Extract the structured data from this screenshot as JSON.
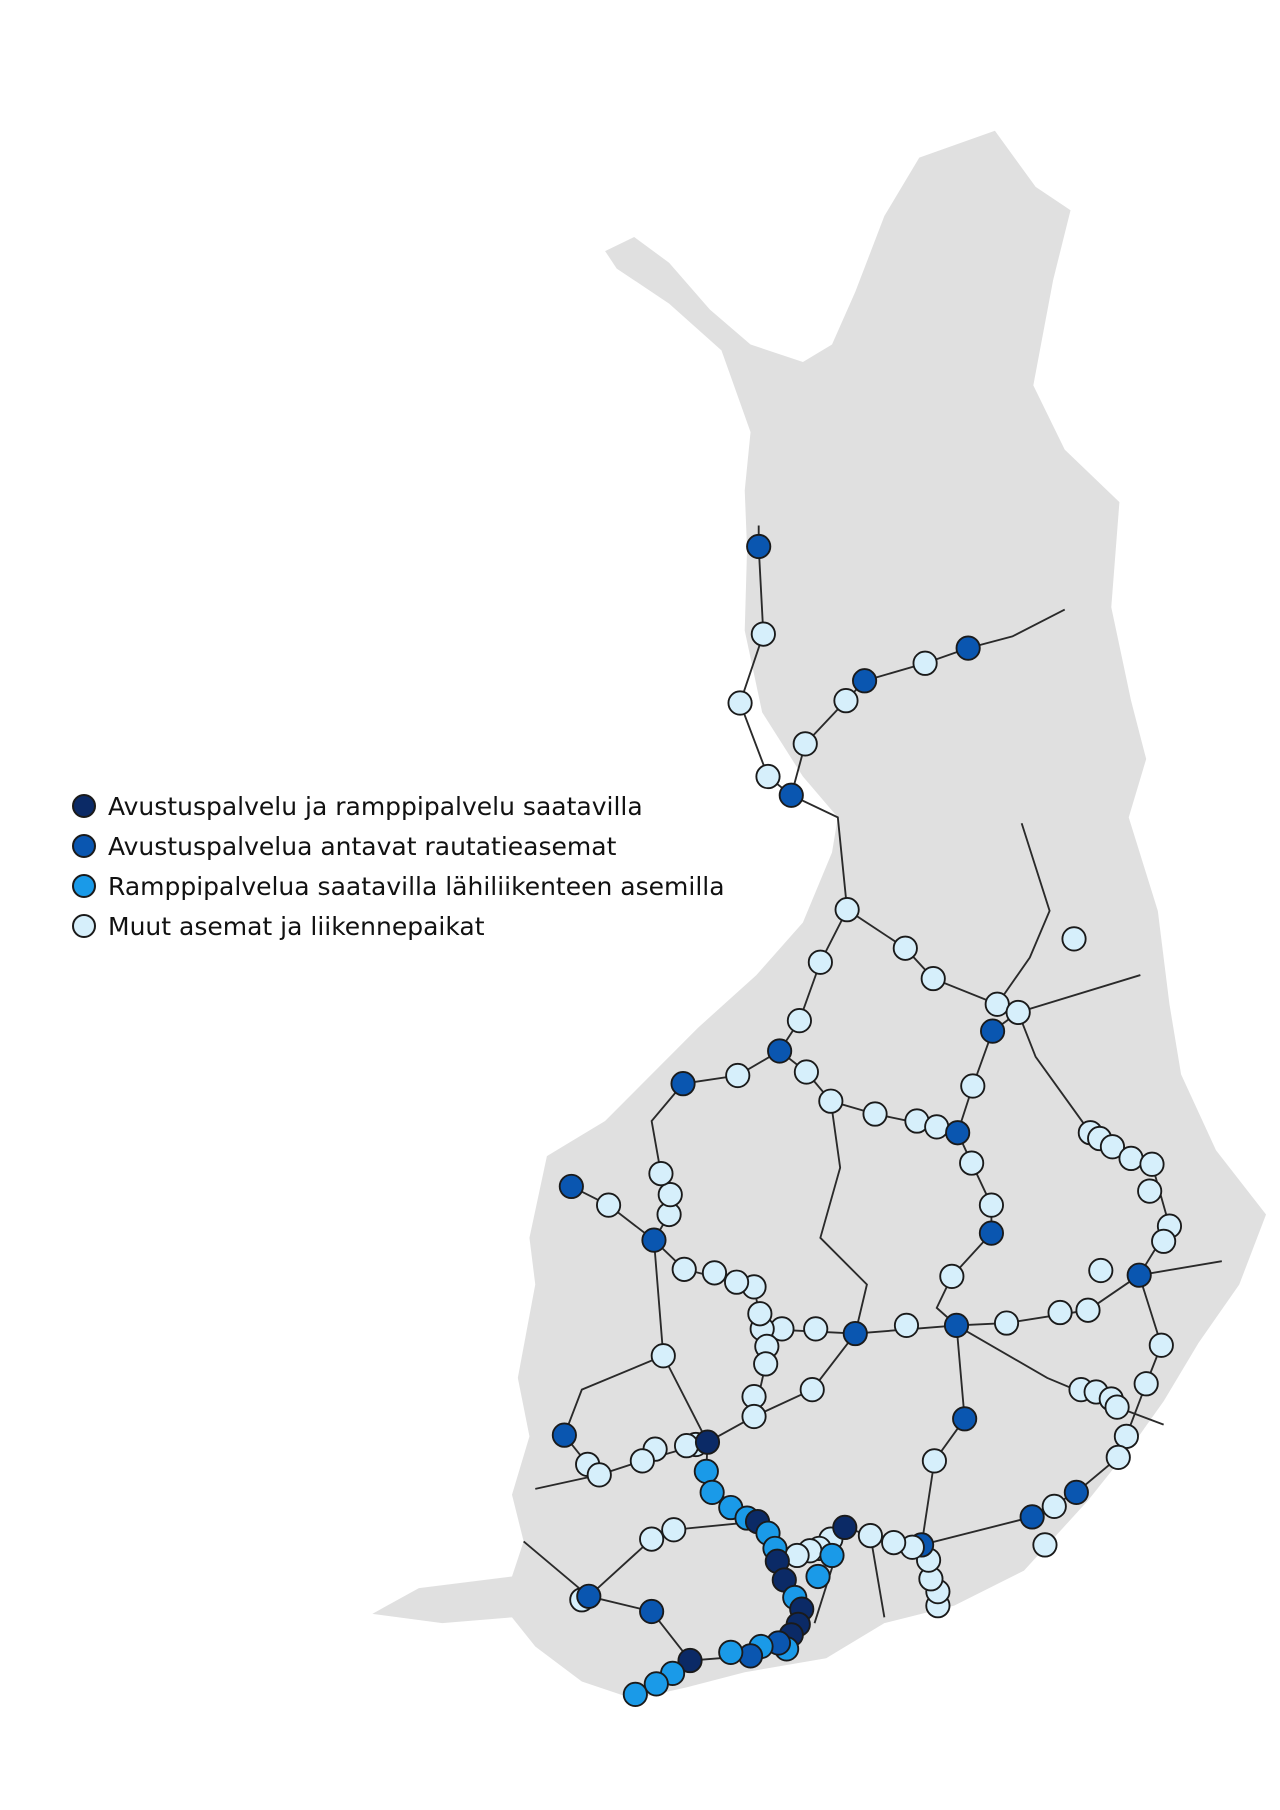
{
  "legend": {
    "items": [
      {
        "label": "Avustuspalvelu ja ramppipalvelu saatavilla",
        "color": "#0b2a66"
      },
      {
        "label": "Avustuspalvelua antavat rautatieasemat",
        "color": "#0a56b0"
      },
      {
        "label": "Ramppipalvelua saatavilla lähiliikenteen asemilla",
        "color": "#1a9ae8"
      },
      {
        "label": "Muut asemat ja liikennepaikat",
        "color": "#d6effb"
      }
    ]
  },
  "colors": {
    "land": "#e0e0e0",
    "rail": "#2a2a2a",
    "marker_outline": "#1a1a1a"
  }
}
